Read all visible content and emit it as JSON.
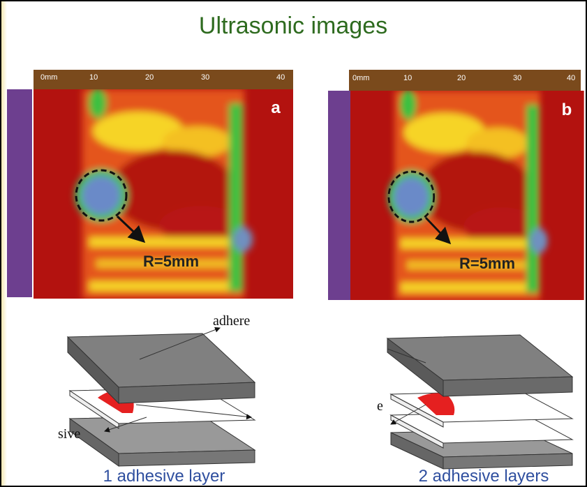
{
  "title": "Ultrasonic images",
  "panels": [
    {
      "label": "a",
      "annotation": "R=5mm",
      "ruler_labels": [
        "0mm",
        "10",
        "20",
        "30",
        "40"
      ]
    },
    {
      "label": "b",
      "annotation": "R=5mm",
      "ruler_labels": [
        "0mm",
        "10",
        "20",
        "30",
        "40"
      ]
    }
  ],
  "diagrams": [
    {
      "labels": [
        "adhere",
        "sive"
      ],
      "caption": "1 adhesive layer"
    },
    {
      "labels": [
        "e"
      ],
      "caption": "2 adhesive layers"
    }
  ]
}
